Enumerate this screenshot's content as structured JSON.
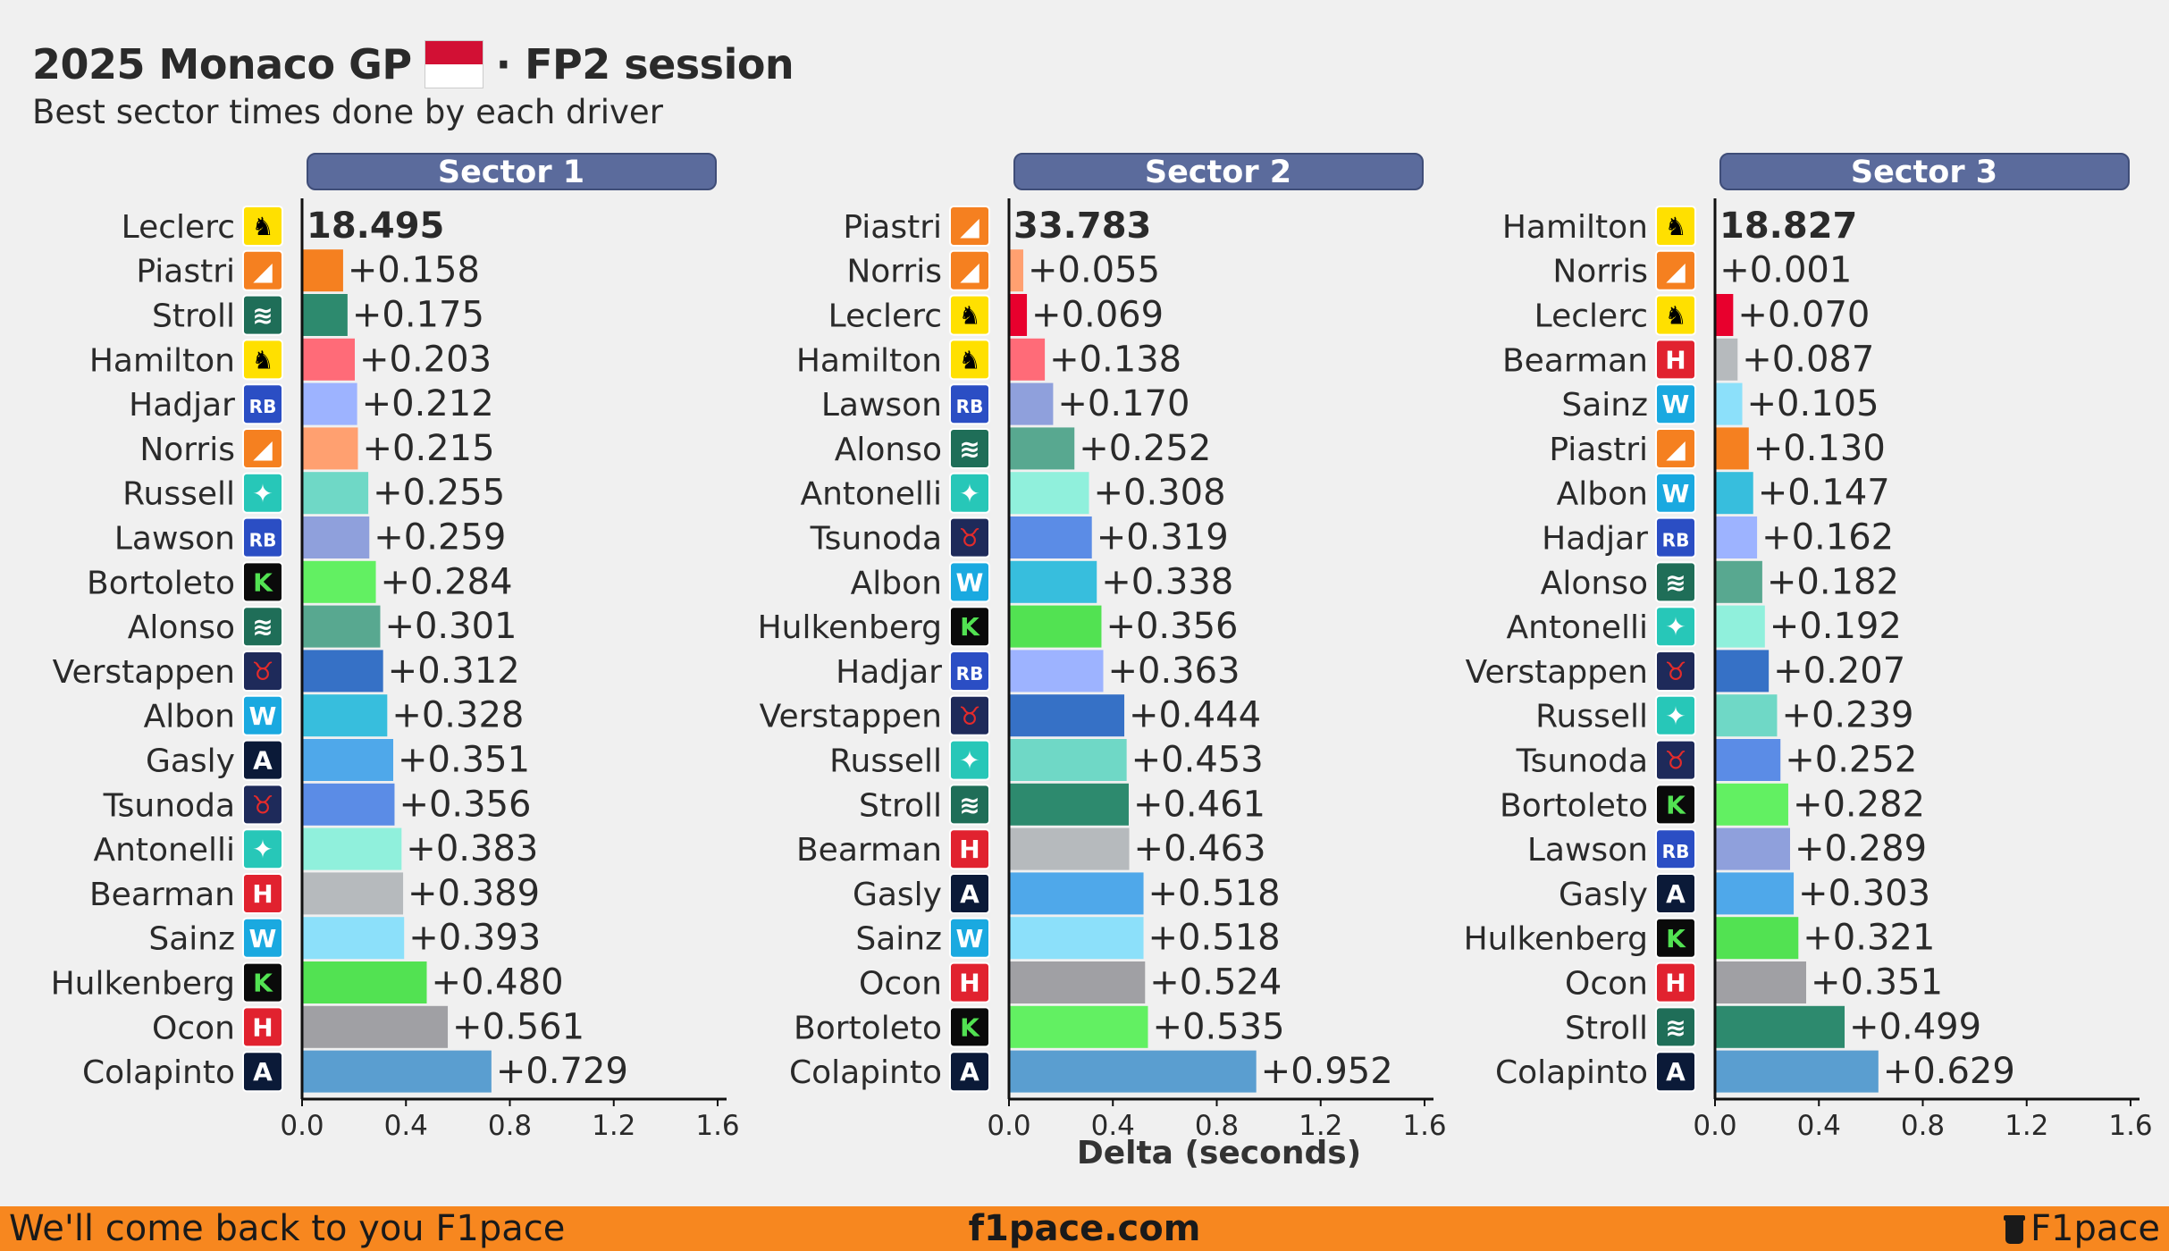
{
  "header": {
    "title_left": "2025 Monaco GP",
    "title_right": "· FP2 session",
    "flag_color": "#d21034",
    "subtitle": "Best sector times done by each driver"
  },
  "xlabel": "Delta (seconds)",
  "footer": {
    "left": "We'll come back to you F1pace",
    "center": "f1pace.com",
    "right": "F1pace",
    "bg": "#f7871f"
  },
  "team_colors": {
    "ferrari": {
      "icon": "prancing-horse-icon",
      "bg": "#ffe000",
      "fg": "#000000",
      "glyph": "♞"
    },
    "mclaren": {
      "icon": "mclaren-swoosh-icon",
      "bg": "#f58020",
      "fg": "#ffffff",
      "glyph": "◢"
    },
    "aston": {
      "icon": "aston-wings-icon",
      "bg": "#1f6e58",
      "fg": "#ffffff",
      "glyph": "≋"
    },
    "rb": {
      "icon": "racing-bulls-icon",
      "bg": "#2b4ec4",
      "fg": "#ffffff",
      "glyph": "RB"
    },
    "mercedes": {
      "icon": "mercedes-star-icon",
      "bg": "#27c7b8",
      "fg": "#ffffff",
      "glyph": "✦"
    },
    "sauber": {
      "icon": "kick-sauber-icon",
      "bg": "#0a0a0a",
      "fg": "#52e252",
      "glyph": "K"
    },
    "redbull": {
      "icon": "red-bull-icon",
      "bg": "#1e2a5a",
      "fg": "#e32b2b",
      "glyph": "♉"
    },
    "williams": {
      "icon": "williams-w-icon",
      "bg": "#1aa9e0",
      "fg": "#ffffff",
      "glyph": "W"
    },
    "alpine": {
      "icon": "alpine-a-icon",
      "bg": "#0b1a38",
      "fg": "#ffffff",
      "glyph": "A"
    },
    "haas": {
      "icon": "haas-h-icon",
      "bg": "#e1222f",
      "fg": "#ffffff",
      "glyph": "H"
    }
  },
  "chart_data": [
    {
      "type": "bar",
      "title": "Sector 1",
      "best_time": "18.495",
      "xlim": [
        0,
        1.6
      ],
      "xticks": [
        "0.0",
        "0.4",
        "0.8",
        "1.2",
        "1.6"
      ],
      "rows": [
        {
          "driver": "Leclerc",
          "team": "ferrari",
          "delta": 0,
          "label": "18.495",
          "color": "#e8002d"
        },
        {
          "driver": "Piastri",
          "team": "mclaren",
          "delta": 0.158,
          "label": "+0.158",
          "color": "#f58020"
        },
        {
          "driver": "Stroll",
          "team": "aston",
          "delta": 0.175,
          "label": "+0.175",
          "color": "#2d8a6e"
        },
        {
          "driver": "Hamilton",
          "team": "ferrari",
          "delta": 0.203,
          "label": "+0.203",
          "color": "#ff6b78"
        },
        {
          "driver": "Hadjar",
          "team": "rb",
          "delta": 0.212,
          "label": "+0.212",
          "color": "#9db3ff"
        },
        {
          "driver": "Norris",
          "team": "mclaren",
          "delta": 0.215,
          "label": "+0.215",
          "color": "#ffa070"
        },
        {
          "driver": "Russell",
          "team": "mercedes",
          "delta": 0.255,
          "label": "+0.255",
          "color": "#6fd8c6"
        },
        {
          "driver": "Lawson",
          "team": "rb",
          "delta": 0.259,
          "label": "+0.259",
          "color": "#8fa0dc"
        },
        {
          "driver": "Bortoleto",
          "team": "sauber",
          "delta": 0.284,
          "label": "+0.284",
          "color": "#62f062"
        },
        {
          "driver": "Alonso",
          "team": "aston",
          "delta": 0.301,
          "label": "+0.301",
          "color": "#58a890"
        },
        {
          "driver": "Verstappen",
          "team": "redbull",
          "delta": 0.312,
          "label": "+0.312",
          "color": "#3671c6"
        },
        {
          "driver": "Albon",
          "team": "williams",
          "delta": 0.328,
          "label": "+0.328",
          "color": "#37bedd"
        },
        {
          "driver": "Gasly",
          "team": "alpine",
          "delta": 0.351,
          "label": "+0.351",
          "color": "#4fa8ea"
        },
        {
          "driver": "Tsunoda",
          "team": "redbull",
          "delta": 0.356,
          "label": "+0.356",
          "color": "#5b8ce6"
        },
        {
          "driver": "Antonelli",
          "team": "mercedes",
          "delta": 0.383,
          "label": "+0.383",
          "color": "#90f0dc"
        },
        {
          "driver": "Bearman",
          "team": "haas",
          "delta": 0.389,
          "label": "+0.389",
          "color": "#b6babd"
        },
        {
          "driver": "Sainz",
          "team": "williams",
          "delta": 0.393,
          "label": "+0.393",
          "color": "#8ce0fa"
        },
        {
          "driver": "Hulkenberg",
          "team": "sauber",
          "delta": 0.48,
          "label": "+0.480",
          "color": "#52e252"
        },
        {
          "driver": "Ocon",
          "team": "haas",
          "delta": 0.561,
          "label": "+0.561",
          "color": "#a0a0a4"
        },
        {
          "driver": "Colapinto",
          "team": "alpine",
          "delta": 0.729,
          "label": "+0.729",
          "color": "#5a9ed0"
        }
      ]
    },
    {
      "type": "bar",
      "title": "Sector 2",
      "best_time": "33.783",
      "xlim": [
        0,
        1.6
      ],
      "xticks": [
        "0.0",
        "0.4",
        "0.8",
        "1.2",
        "1.6"
      ],
      "rows": [
        {
          "driver": "Piastri",
          "team": "mclaren",
          "delta": 0,
          "label": "33.783",
          "color": "#f58020"
        },
        {
          "driver": "Norris",
          "team": "mclaren",
          "delta": 0.055,
          "label": "+0.055",
          "color": "#ffa070"
        },
        {
          "driver": "Leclerc",
          "team": "ferrari",
          "delta": 0.069,
          "label": "+0.069",
          "color": "#e8002d"
        },
        {
          "driver": "Hamilton",
          "team": "ferrari",
          "delta": 0.138,
          "label": "+0.138",
          "color": "#ff6b78"
        },
        {
          "driver": "Lawson",
          "team": "rb",
          "delta": 0.17,
          "label": "+0.170",
          "color": "#8fa0dc"
        },
        {
          "driver": "Alonso",
          "team": "aston",
          "delta": 0.252,
          "label": "+0.252",
          "color": "#58a890"
        },
        {
          "driver": "Antonelli",
          "team": "mercedes",
          "delta": 0.308,
          "label": "+0.308",
          "color": "#90f0dc"
        },
        {
          "driver": "Tsunoda",
          "team": "redbull",
          "delta": 0.319,
          "label": "+0.319",
          "color": "#5b8ce6"
        },
        {
          "driver": "Albon",
          "team": "williams",
          "delta": 0.338,
          "label": "+0.338",
          "color": "#37bedd"
        },
        {
          "driver": "Hulkenberg",
          "team": "sauber",
          "delta": 0.356,
          "label": "+0.356",
          "color": "#52e252"
        },
        {
          "driver": "Hadjar",
          "team": "rb",
          "delta": 0.363,
          "label": "+0.363",
          "color": "#9db3ff"
        },
        {
          "driver": "Verstappen",
          "team": "redbull",
          "delta": 0.444,
          "label": "+0.444",
          "color": "#3671c6"
        },
        {
          "driver": "Russell",
          "team": "mercedes",
          "delta": 0.453,
          "label": "+0.453",
          "color": "#6fd8c6"
        },
        {
          "driver": "Stroll",
          "team": "aston",
          "delta": 0.461,
          "label": "+0.461",
          "color": "#2d8a6e"
        },
        {
          "driver": "Bearman",
          "team": "haas",
          "delta": 0.463,
          "label": "+0.463",
          "color": "#b6babd"
        },
        {
          "driver": "Gasly",
          "team": "alpine",
          "delta": 0.518,
          "label": "+0.518",
          "color": "#4fa8ea"
        },
        {
          "driver": "Sainz",
          "team": "williams",
          "delta": 0.518,
          "label": "+0.518",
          "color": "#8ce0fa"
        },
        {
          "driver": "Ocon",
          "team": "haas",
          "delta": 0.524,
          "label": "+0.524",
          "color": "#a0a0a4"
        },
        {
          "driver": "Bortoleto",
          "team": "sauber",
          "delta": 0.535,
          "label": "+0.535",
          "color": "#62f062"
        },
        {
          "driver": "Colapinto",
          "team": "alpine",
          "delta": 0.952,
          "label": "+0.952",
          "color": "#5a9ed0"
        }
      ]
    },
    {
      "type": "bar",
      "title": "Sector 3",
      "best_time": "18.827",
      "xlim": [
        0,
        1.6
      ],
      "xticks": [
        "0.0",
        "0.4",
        "0.8",
        "1.2",
        "1.6"
      ],
      "rows": [
        {
          "driver": "Hamilton",
          "team": "ferrari",
          "delta": 0,
          "label": "18.827",
          "color": "#ff6b78"
        },
        {
          "driver": "Norris",
          "team": "mclaren",
          "delta": 0.001,
          "label": "+0.001",
          "color": "#ffa070"
        },
        {
          "driver": "Leclerc",
          "team": "ferrari",
          "delta": 0.07,
          "label": "+0.070",
          "color": "#e8002d"
        },
        {
          "driver": "Bearman",
          "team": "haas",
          "delta": 0.087,
          "label": "+0.087",
          "color": "#b6babd"
        },
        {
          "driver": "Sainz",
          "team": "williams",
          "delta": 0.105,
          "label": "+0.105",
          "color": "#8ce0fa"
        },
        {
          "driver": "Piastri",
          "team": "mclaren",
          "delta": 0.13,
          "label": "+0.130",
          "color": "#f58020"
        },
        {
          "driver": "Albon",
          "team": "williams",
          "delta": 0.147,
          "label": "+0.147",
          "color": "#37bedd"
        },
        {
          "driver": "Hadjar",
          "team": "rb",
          "delta": 0.162,
          "label": "+0.162",
          "color": "#9db3ff"
        },
        {
          "driver": "Alonso",
          "team": "aston",
          "delta": 0.182,
          "label": "+0.182",
          "color": "#58a890"
        },
        {
          "driver": "Antonelli",
          "team": "mercedes",
          "delta": 0.192,
          "label": "+0.192",
          "color": "#90f0dc"
        },
        {
          "driver": "Verstappen",
          "team": "redbull",
          "delta": 0.207,
          "label": "+0.207",
          "color": "#3671c6"
        },
        {
          "driver": "Russell",
          "team": "mercedes",
          "delta": 0.239,
          "label": "+0.239",
          "color": "#6fd8c6"
        },
        {
          "driver": "Tsunoda",
          "team": "redbull",
          "delta": 0.252,
          "label": "+0.252",
          "color": "#5b8ce6"
        },
        {
          "driver": "Bortoleto",
          "team": "sauber",
          "delta": 0.282,
          "label": "+0.282",
          "color": "#62f062"
        },
        {
          "driver": "Lawson",
          "team": "rb",
          "delta": 0.289,
          "label": "+0.289",
          "color": "#8fa0dc"
        },
        {
          "driver": "Gasly",
          "team": "alpine",
          "delta": 0.303,
          "label": "+0.303",
          "color": "#4fa8ea"
        },
        {
          "driver": "Hulkenberg",
          "team": "sauber",
          "delta": 0.321,
          "label": "+0.321",
          "color": "#52e252"
        },
        {
          "driver": "Ocon",
          "team": "haas",
          "delta": 0.351,
          "label": "+0.351",
          "color": "#a0a0a4"
        },
        {
          "driver": "Stroll",
          "team": "aston",
          "delta": 0.499,
          "label": "+0.499",
          "color": "#2d8a6e"
        },
        {
          "driver": "Colapinto",
          "team": "alpine",
          "delta": 0.629,
          "label": "+0.629",
          "color": "#5a9ed0"
        }
      ]
    }
  ]
}
